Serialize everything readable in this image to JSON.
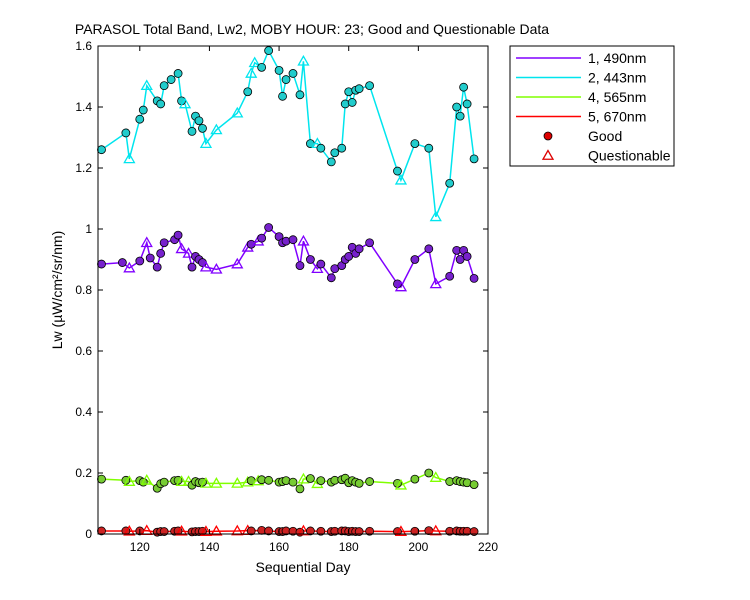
{
  "chart_data": {
    "type": "line",
    "title": "PARASOL Total Band,  Lw2, MOBY HOUR: 23;  Good and Questionable Data",
    "xlabel": "Sequential Day",
    "ylabel": "Lw (µW/cm²/sr/nm)",
    "xlim": [
      108,
      220
    ],
    "ylim": [
      0,
      1.6
    ],
    "xticks": [
      "120",
      "140",
      "160",
      "180",
      "200",
      "220"
    ],
    "yticks": [
      "0",
      "0.2",
      "0.4",
      "0.6",
      "0.8",
      "1",
      "1.2",
      "1.4",
      "1.6"
    ],
    "grid": false,
    "legend_position": "outside-right",
    "markers": {
      "good": {
        "label": "Good",
        "shape": "circle",
        "legend_color": "#dd0000"
      },
      "questionable": {
        "label": "Questionable",
        "shape": "triangle",
        "legend_color": "#dd0000"
      }
    },
    "series": [
      {
        "name": "1, 490nm",
        "color": "#8000ff",
        "marker_fill": "#7722cc",
        "points": [
          [
            109,
            0.885,
            "g"
          ],
          [
            115,
            0.89,
            "g"
          ],
          [
            117,
            0.872,
            "q"
          ],
          [
            120,
            0.895,
            "g"
          ],
          [
            122,
            0.955,
            "q"
          ],
          [
            123,
            0.905,
            "g"
          ],
          [
            125,
            0.875,
            "g"
          ],
          [
            126,
            0.92,
            "g"
          ],
          [
            127,
            0.955,
            "g"
          ],
          [
            130,
            0.965,
            "g"
          ],
          [
            131,
            0.98,
            "g"
          ],
          [
            132,
            0.935,
            "q"
          ],
          [
            134,
            0.92,
            "q"
          ],
          [
            135,
            0.875,
            "g"
          ],
          [
            136,
            0.91,
            "g"
          ],
          [
            137,
            0.9,
            "g"
          ],
          [
            138,
            0.89,
            "g"
          ],
          [
            139,
            0.875,
            "q"
          ],
          [
            142,
            0.868,
            "q"
          ],
          [
            148,
            0.885,
            "q"
          ],
          [
            151,
            0.94,
            "q"
          ],
          [
            152,
            0.95,
            "g"
          ],
          [
            154,
            0.96,
            "q"
          ],
          [
            155,
            0.97,
            "g"
          ],
          [
            157,
            1.005,
            "g"
          ],
          [
            160,
            0.975,
            "g"
          ],
          [
            161,
            0.955,
            "g"
          ],
          [
            162,
            0.96,
            "g"
          ],
          [
            164,
            0.965,
            "g"
          ],
          [
            166,
            0.88,
            "g"
          ],
          [
            167,
            0.96,
            "q"
          ],
          [
            169,
            0.9,
            "g"
          ],
          [
            171,
            0.87,
            "q"
          ],
          [
            172,
            0.885,
            "g"
          ],
          [
            175,
            0.84,
            "g"
          ],
          [
            176,
            0.87,
            "g"
          ],
          [
            178,
            0.88,
            "g"
          ],
          [
            179,
            0.9,
            "g"
          ],
          [
            180,
            0.91,
            "g"
          ],
          [
            181,
            0.94,
            "g"
          ],
          [
            182,
            0.92,
            "g"
          ],
          [
            183,
            0.935,
            "g"
          ],
          [
            186,
            0.955,
            "g"
          ],
          [
            194,
            0.82,
            "g"
          ],
          [
            195,
            0.81,
            "q"
          ],
          [
            199,
            0.9,
            "g"
          ],
          [
            203,
            0.935,
            "g"
          ],
          [
            205,
            0.82,
            "q"
          ],
          [
            209,
            0.845,
            "g"
          ],
          [
            211,
            0.93,
            "g"
          ],
          [
            212,
            0.9,
            "g"
          ],
          [
            213,
            0.93,
            "g"
          ],
          [
            214,
            0.91,
            "g"
          ],
          [
            216,
            0.838,
            "g"
          ]
        ]
      },
      {
        "name": "2, 443nm",
        "color": "#00e5ee",
        "marker_fill": "#22cccc",
        "points": [
          [
            109,
            1.26,
            "g"
          ],
          [
            116,
            1.315,
            "g"
          ],
          [
            117,
            1.23,
            "q"
          ],
          [
            120,
            1.36,
            "g"
          ],
          [
            121,
            1.39,
            "g"
          ],
          [
            122,
            1.47,
            "q"
          ],
          [
            125,
            1.42,
            "g"
          ],
          [
            126,
            1.41,
            "g"
          ],
          [
            127,
            1.47,
            "g"
          ],
          [
            129,
            1.49,
            "g"
          ],
          [
            131,
            1.51,
            "g"
          ],
          [
            132,
            1.42,
            "g"
          ],
          [
            133,
            1.41,
            "q"
          ],
          [
            135,
            1.32,
            "g"
          ],
          [
            136,
            1.37,
            "g"
          ],
          [
            137,
            1.355,
            "g"
          ],
          [
            138,
            1.33,
            "g"
          ],
          [
            139,
            1.28,
            "q"
          ],
          [
            142,
            1.325,
            "q"
          ],
          [
            148,
            1.38,
            "q"
          ],
          [
            151,
            1.45,
            "g"
          ],
          [
            152,
            1.51,
            "q"
          ],
          [
            153,
            1.545,
            "q"
          ],
          [
            155,
            1.53,
            "g"
          ],
          [
            157,
            1.585,
            "g"
          ],
          [
            160,
            1.52,
            "g"
          ],
          [
            161,
            1.435,
            "g"
          ],
          [
            162,
            1.49,
            "g"
          ],
          [
            164,
            1.51,
            "g"
          ],
          [
            166,
            1.44,
            "g"
          ],
          [
            167,
            1.55,
            "q"
          ],
          [
            169,
            1.28,
            "g"
          ],
          [
            171,
            1.28,
            "q"
          ],
          [
            172,
            1.265,
            "g"
          ],
          [
            175,
            1.22,
            "g"
          ],
          [
            176,
            1.25,
            "g"
          ],
          [
            178,
            1.265,
            "g"
          ],
          [
            179,
            1.41,
            "g"
          ],
          [
            180,
            1.45,
            "g"
          ],
          [
            181,
            1.415,
            "g"
          ],
          [
            182,
            1.455,
            "g"
          ],
          [
            183,
            1.46,
            "g"
          ],
          [
            186,
            1.47,
            "g"
          ],
          [
            194,
            1.19,
            "g"
          ],
          [
            195,
            1.16,
            "q"
          ],
          [
            199,
            1.28,
            "g"
          ],
          [
            203,
            1.265,
            "g"
          ],
          [
            205,
            1.04,
            "q"
          ],
          [
            209,
            1.15,
            "g"
          ],
          [
            211,
            1.4,
            "g"
          ],
          [
            212,
            1.37,
            "g"
          ],
          [
            213,
            1.465,
            "g"
          ],
          [
            214,
            1.41,
            "g"
          ],
          [
            216,
            1.23,
            "g"
          ]
        ]
      },
      {
        "name": "4, 565nm",
        "color": "#80ff00",
        "marker_fill": "#77cc33",
        "points": [
          [
            109,
            0.18,
            "g"
          ],
          [
            116,
            0.176,
            "g"
          ],
          [
            117,
            0.172,
            "q"
          ],
          [
            120,
            0.175,
            "g"
          ],
          [
            121,
            0.17,
            "g"
          ],
          [
            122,
            0.176,
            "q"
          ],
          [
            125,
            0.15,
            "g"
          ],
          [
            126,
            0.165,
            "g"
          ],
          [
            127,
            0.17,
            "g"
          ],
          [
            130,
            0.175,
            "g"
          ],
          [
            131,
            0.176,
            "g"
          ],
          [
            132,
            0.172,
            "q"
          ],
          [
            134,
            0.172,
            "q"
          ],
          [
            135,
            0.16,
            "g"
          ],
          [
            136,
            0.172,
            "g"
          ],
          [
            137,
            0.168,
            "g"
          ],
          [
            138,
            0.17,
            "g"
          ],
          [
            139,
            0.166,
            "q"
          ],
          [
            142,
            0.166,
            "q"
          ],
          [
            148,
            0.166,
            "q"
          ],
          [
            151,
            0.17,
            "q"
          ],
          [
            152,
            0.175,
            "g"
          ],
          [
            154,
            0.174,
            "q"
          ],
          [
            155,
            0.178,
            "g"
          ],
          [
            157,
            0.176,
            "g"
          ],
          [
            160,
            0.17,
            "g"
          ],
          [
            161,
            0.172,
            "g"
          ],
          [
            162,
            0.175,
            "g"
          ],
          [
            164,
            0.17,
            "g"
          ],
          [
            166,
            0.148,
            "g"
          ],
          [
            167,
            0.18,
            "q"
          ],
          [
            169,
            0.182,
            "g"
          ],
          [
            171,
            0.165,
            "q"
          ],
          [
            172,
            0.175,
            "g"
          ],
          [
            175,
            0.17,
            "g"
          ],
          [
            176,
            0.176,
            "g"
          ],
          [
            178,
            0.178,
            "g"
          ],
          [
            179,
            0.183,
            "g"
          ],
          [
            180,
            0.168,
            "g"
          ],
          [
            181,
            0.175,
            "g"
          ],
          [
            182,
            0.17,
            "g"
          ],
          [
            183,
            0.166,
            "g"
          ],
          [
            186,
            0.172,
            "g"
          ],
          [
            194,
            0.166,
            "g"
          ],
          [
            195,
            0.16,
            "q"
          ],
          [
            199,
            0.18,
            "g"
          ],
          [
            203,
            0.2,
            "g"
          ],
          [
            205,
            0.185,
            "q"
          ],
          [
            209,
            0.172,
            "g"
          ],
          [
            211,
            0.175,
            "g"
          ],
          [
            212,
            0.172,
            "g"
          ],
          [
            213,
            0.17,
            "g"
          ],
          [
            214,
            0.168,
            "g"
          ],
          [
            216,
            0.162,
            "g"
          ]
        ]
      },
      {
        "name": "5, 670nm",
        "color": "#ff0000",
        "marker_fill": "#cc2222",
        "points": [
          [
            109,
            0.01,
            "g"
          ],
          [
            116,
            0.01,
            "g"
          ],
          [
            117,
            0.009,
            "q"
          ],
          [
            120,
            0.01,
            "g"
          ],
          [
            122,
            0.011,
            "q"
          ],
          [
            125,
            0.006,
            "g"
          ],
          [
            126,
            0.008,
            "g"
          ],
          [
            127,
            0.008,
            "g"
          ],
          [
            130,
            0.009,
            "g"
          ],
          [
            131,
            0.01,
            "g"
          ],
          [
            132,
            0.009,
            "q"
          ],
          [
            135,
            0.007,
            "g"
          ],
          [
            136,
            0.008,
            "g"
          ],
          [
            137,
            0.008,
            "g"
          ],
          [
            138,
            0.009,
            "g"
          ],
          [
            139,
            0.008,
            "q"
          ],
          [
            142,
            0.009,
            "q"
          ],
          [
            148,
            0.01,
            "q"
          ],
          [
            151,
            0.011,
            "q"
          ],
          [
            152,
            0.01,
            "g"
          ],
          [
            155,
            0.012,
            "g"
          ],
          [
            157,
            0.01,
            "g"
          ],
          [
            160,
            0.008,
            "g"
          ],
          [
            161,
            0.008,
            "g"
          ],
          [
            162,
            0.01,
            "g"
          ],
          [
            164,
            0.009,
            "g"
          ],
          [
            166,
            0.006,
            "g"
          ],
          [
            167,
            0.01,
            "q"
          ],
          [
            169,
            0.01,
            "g"
          ],
          [
            172,
            0.009,
            "g"
          ],
          [
            175,
            0.008,
            "g"
          ],
          [
            176,
            0.009,
            "g"
          ],
          [
            178,
            0.01,
            "g"
          ],
          [
            179,
            0.01,
            "g"
          ],
          [
            180,
            0.008,
            "g"
          ],
          [
            181,
            0.009,
            "g"
          ],
          [
            182,
            0.008,
            "g"
          ],
          [
            183,
            0.008,
            "g"
          ],
          [
            186,
            0.009,
            "g"
          ],
          [
            194,
            0.008,
            "g"
          ],
          [
            195,
            0.008,
            "q"
          ],
          [
            199,
            0.009,
            "g"
          ],
          [
            203,
            0.011,
            "g"
          ],
          [
            205,
            0.01,
            "q"
          ],
          [
            209,
            0.009,
            "g"
          ],
          [
            211,
            0.01,
            "g"
          ],
          [
            212,
            0.009,
            "g"
          ],
          [
            213,
            0.009,
            "g"
          ],
          [
            214,
            0.009,
            "g"
          ],
          [
            216,
            0.008,
            "g"
          ]
        ]
      }
    ]
  }
}
